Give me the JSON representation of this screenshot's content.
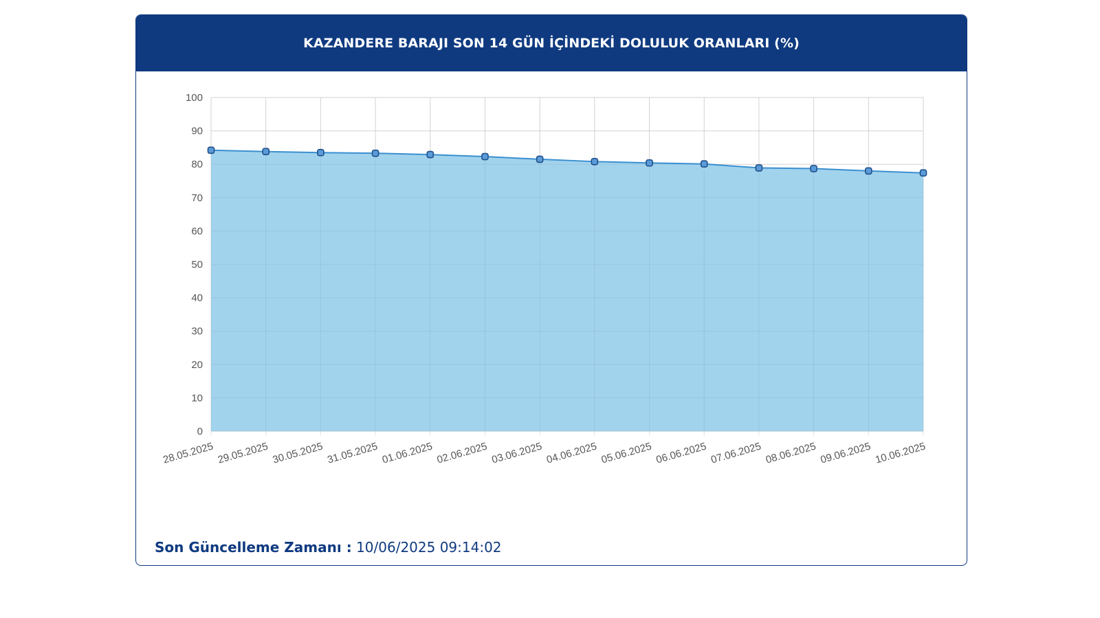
{
  "header": {
    "title": "KAZANDERE BARAJI SON 14 GÜN İÇİNDEKİ DOLULUK ORANLARI (%)"
  },
  "footer": {
    "label": "Son Güncelleme Zamanı :",
    "value": "10/06/2025 09:14:02"
  },
  "colors": {
    "header_bg": "#0f3a80",
    "area_fill": "#9dd1ec",
    "line": "#3a8fd0",
    "marker_fill": "#5a9bd8",
    "marker_stroke": "#1f4f8a",
    "grid": "#e0e0e0"
  },
  "chart_data": {
    "type": "area",
    "title": "KAZANDERE BARAJI SON 14 GÜN İÇİNDEKİ DOLULUK ORANLARI (%)",
    "categories": [
      "28.05.2025",
      "29.05.2025",
      "30.05.2025",
      "31.05.2025",
      "01.06.2025",
      "02.06.2025",
      "03.06.2025",
      "04.06.2025",
      "05.06.2025",
      "06.06.2025",
      "07.06.2025",
      "08.06.2025",
      "09.06.2025",
      "10.06.2025"
    ],
    "values": [
      84.2,
      83.8,
      83.5,
      83.3,
      82.9,
      82.3,
      81.5,
      80.8,
      80.4,
      80.1,
      78.9,
      78.7,
      78.0,
      77.4
    ],
    "ylim": [
      0,
      100
    ],
    "yticks": [
      "0",
      "10",
      "20",
      "30",
      "40",
      "50",
      "60",
      "70",
      "80",
      "90",
      "100"
    ],
    "grid": true,
    "legend": "none"
  }
}
